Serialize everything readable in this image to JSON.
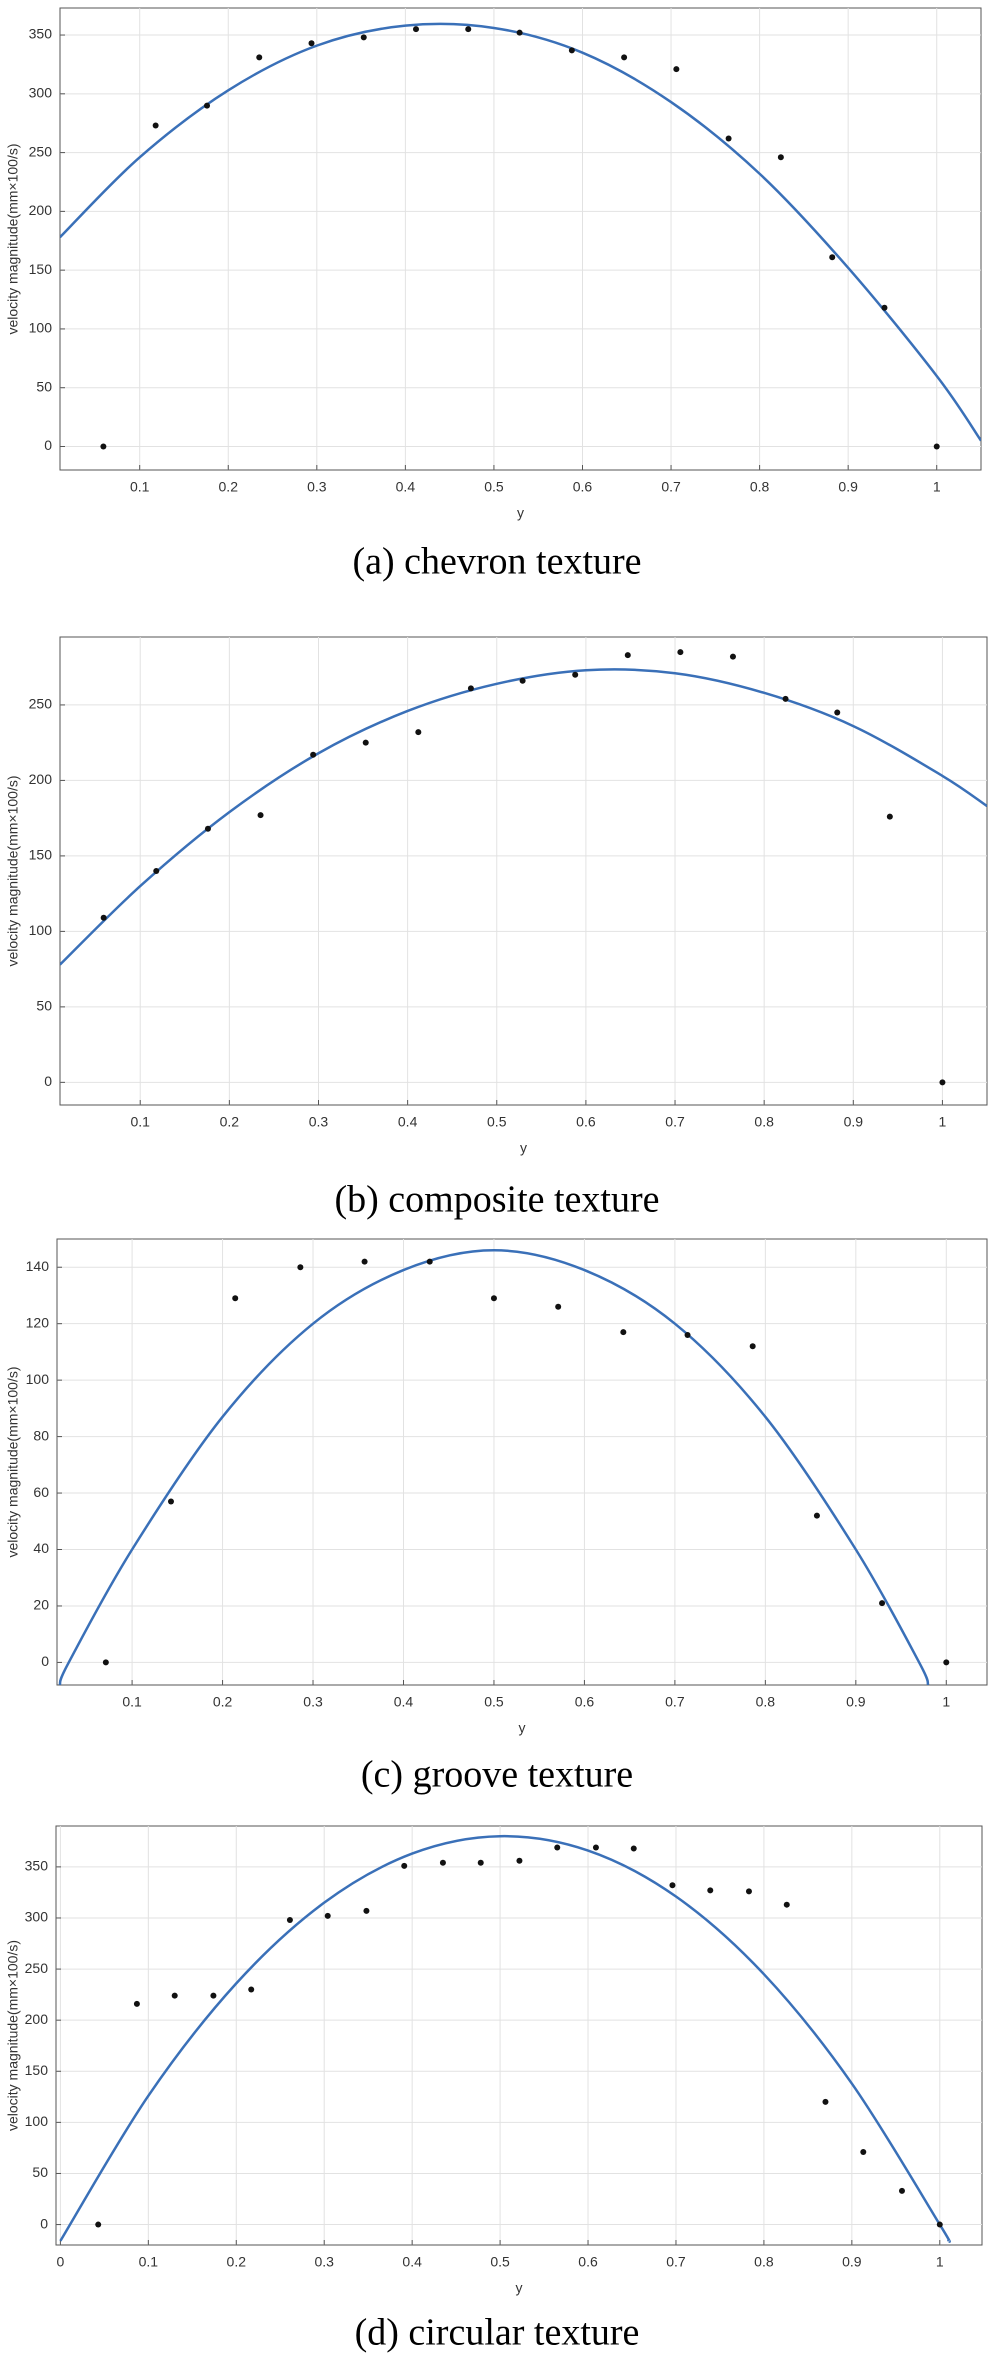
{
  "chart_data": [
    {
      "type": "scatter",
      "caption": "(a) chevron texture",
      "xlabel": "y",
      "ylabel": "velocity magnitude(mm×100/s)",
      "x": [
        0.059,
        0.118,
        0.176,
        0.235,
        0.294,
        0.353,
        0.412,
        0.471,
        0.529,
        0.588,
        0.647,
        0.706,
        0.765,
        0.824,
        0.882,
        0.941,
        1.0
      ],
      "values": [
        0,
        273,
        290,
        331,
        343,
        348,
        355,
        355,
        352,
        337,
        331,
        321,
        262,
        246,
        161,
        118,
        0
      ],
      "color": "#111111",
      "fit": {
        "x": [
          0.01,
          0.1,
          0.2,
          0.3,
          0.4,
          0.5,
          0.6,
          0.7,
          0.8,
          0.9,
          1.0,
          1.05
        ],
        "values": [
          178,
          246,
          303,
          341,
          358,
          356,
          335,
          293,
          232,
          152,
          60,
          5
        ],
        "color": "#3a70b8"
      },
      "xlim": [
        0.01,
        1.05
      ],
      "ylim": [
        -20,
        373
      ],
      "xticks": [
        0.1,
        0.2,
        0.3,
        0.4,
        0.5,
        0.6,
        0.7,
        0.8,
        0.9,
        1
      ],
      "yticks": [
        0,
        50,
        100,
        150,
        200,
        250,
        300,
        350
      ],
      "grid": true
    },
    {
      "type": "scatter",
      "caption": "(b) composite texture",
      "xlabel": "y",
      "ylabel": "velocity magnitude(mm×100/s)",
      "x": [
        0.059,
        0.118,
        0.176,
        0.235,
        0.294,
        0.353,
        0.412,
        0.471,
        0.529,
        0.588,
        0.647,
        0.706,
        0.765,
        0.824,
        0.882,
        0.941,
        1.0
      ],
      "values": [
        109,
        140,
        168,
        177,
        217,
        225,
        232,
        261,
        266,
        270,
        283,
        285,
        282,
        254,
        245,
        176,
        0
      ],
      "color": "#111111",
      "fit": {
        "x": [
          0.01,
          0.1,
          0.2,
          0.3,
          0.4,
          0.5,
          0.6,
          0.7,
          0.8,
          0.9,
          1.0,
          1.05
        ],
        "values": [
          78,
          130,
          179,
          218,
          246,
          264,
          273,
          271,
          258,
          236,
          203,
          183
        ],
        "color": "#3a70b8"
      },
      "xlim": [
        0.01,
        1.05
      ],
      "ylim": [
        -15,
        295
      ],
      "xticks": [
        0.1,
        0.2,
        0.3,
        0.4,
        0.5,
        0.6,
        0.7,
        0.8,
        0.9,
        1
      ],
      "yticks": [
        0,
        50,
        100,
        150,
        200,
        250
      ],
      "grid": true
    },
    {
      "type": "scatter",
      "caption": "(c) groove texture",
      "xlabel": "y",
      "ylabel": "velocity magnitude(mm×100/s)",
      "x": [
        0.071,
        0.143,
        0.214,
        0.286,
        0.357,
        0.429,
        0.5,
        0.571,
        0.643,
        0.714,
        0.786,
        0.857,
        0.929,
        1.0
      ],
      "values": [
        0,
        57,
        129,
        140,
        142,
        142,
        129,
        126,
        117,
        116,
        112,
        52,
        21,
        0
      ],
      "color": "#111111",
      "fit": {
        "x": [
          0.02,
          0.03,
          0.1,
          0.2,
          0.3,
          0.4,
          0.5,
          0.6,
          0.7,
          0.8,
          0.9,
          0.97,
          0.98
        ],
        "values": [
          -8,
          0,
          40,
          87,
          120,
          139,
          146,
          139,
          120,
          87,
          40,
          0,
          -8
        ],
        "color": "#3a70b8"
      },
      "xlim": [
        0.017,
        1.045
      ],
      "ylim": [
        -8,
        150
      ],
      "xticks": [
        0.1,
        0.2,
        0.3,
        0.4,
        0.5,
        0.6,
        0.7,
        0.8,
        0.9,
        1
      ],
      "yticks": [
        0,
        20,
        40,
        60,
        80,
        100,
        120,
        140
      ],
      "grid": true
    },
    {
      "type": "scatter",
      "caption": "(d) circular texture",
      "xlabel": "y",
      "ylabel": "velocity magnitude(mm×100/s)",
      "x": [
        0.043,
        0.087,
        0.13,
        0.174,
        0.217,
        0.261,
        0.304,
        0.348,
        0.391,
        0.435,
        0.478,
        0.522,
        0.565,
        0.609,
        0.652,
        0.696,
        0.739,
        0.783,
        0.826,
        0.87,
        0.913,
        0.957,
        1.0
      ],
      "values": [
        0,
        216,
        224,
        224,
        230,
        298,
        302,
        307,
        351,
        354,
        354,
        356,
        369,
        369,
        368,
        332,
        327,
        326,
        313,
        120,
        71,
        33,
        0
      ],
      "color": "#111111",
      "fit": {
        "x": [
          0.0,
          0.1,
          0.2,
          0.3,
          0.4,
          0.5,
          0.6,
          0.7,
          0.8,
          0.9,
          1.0,
          1.01
        ],
        "values": [
          -16,
          126,
          236,
          315,
          363,
          380,
          366,
          321,
          245,
          138,
          0,
          -16
        ],
        "color": "#3a70b8"
      },
      "xlim": [
        -0.005,
        1.048
      ],
      "ylim": [
        -20,
        390
      ],
      "xticks": [
        0,
        0.1,
        0.2,
        0.3,
        0.4,
        0.5,
        0.6,
        0.7,
        0.8,
        0.9,
        1
      ],
      "yticks": [
        0,
        50,
        100,
        150,
        200,
        250,
        300,
        350
      ],
      "grid": true
    }
  ]
}
